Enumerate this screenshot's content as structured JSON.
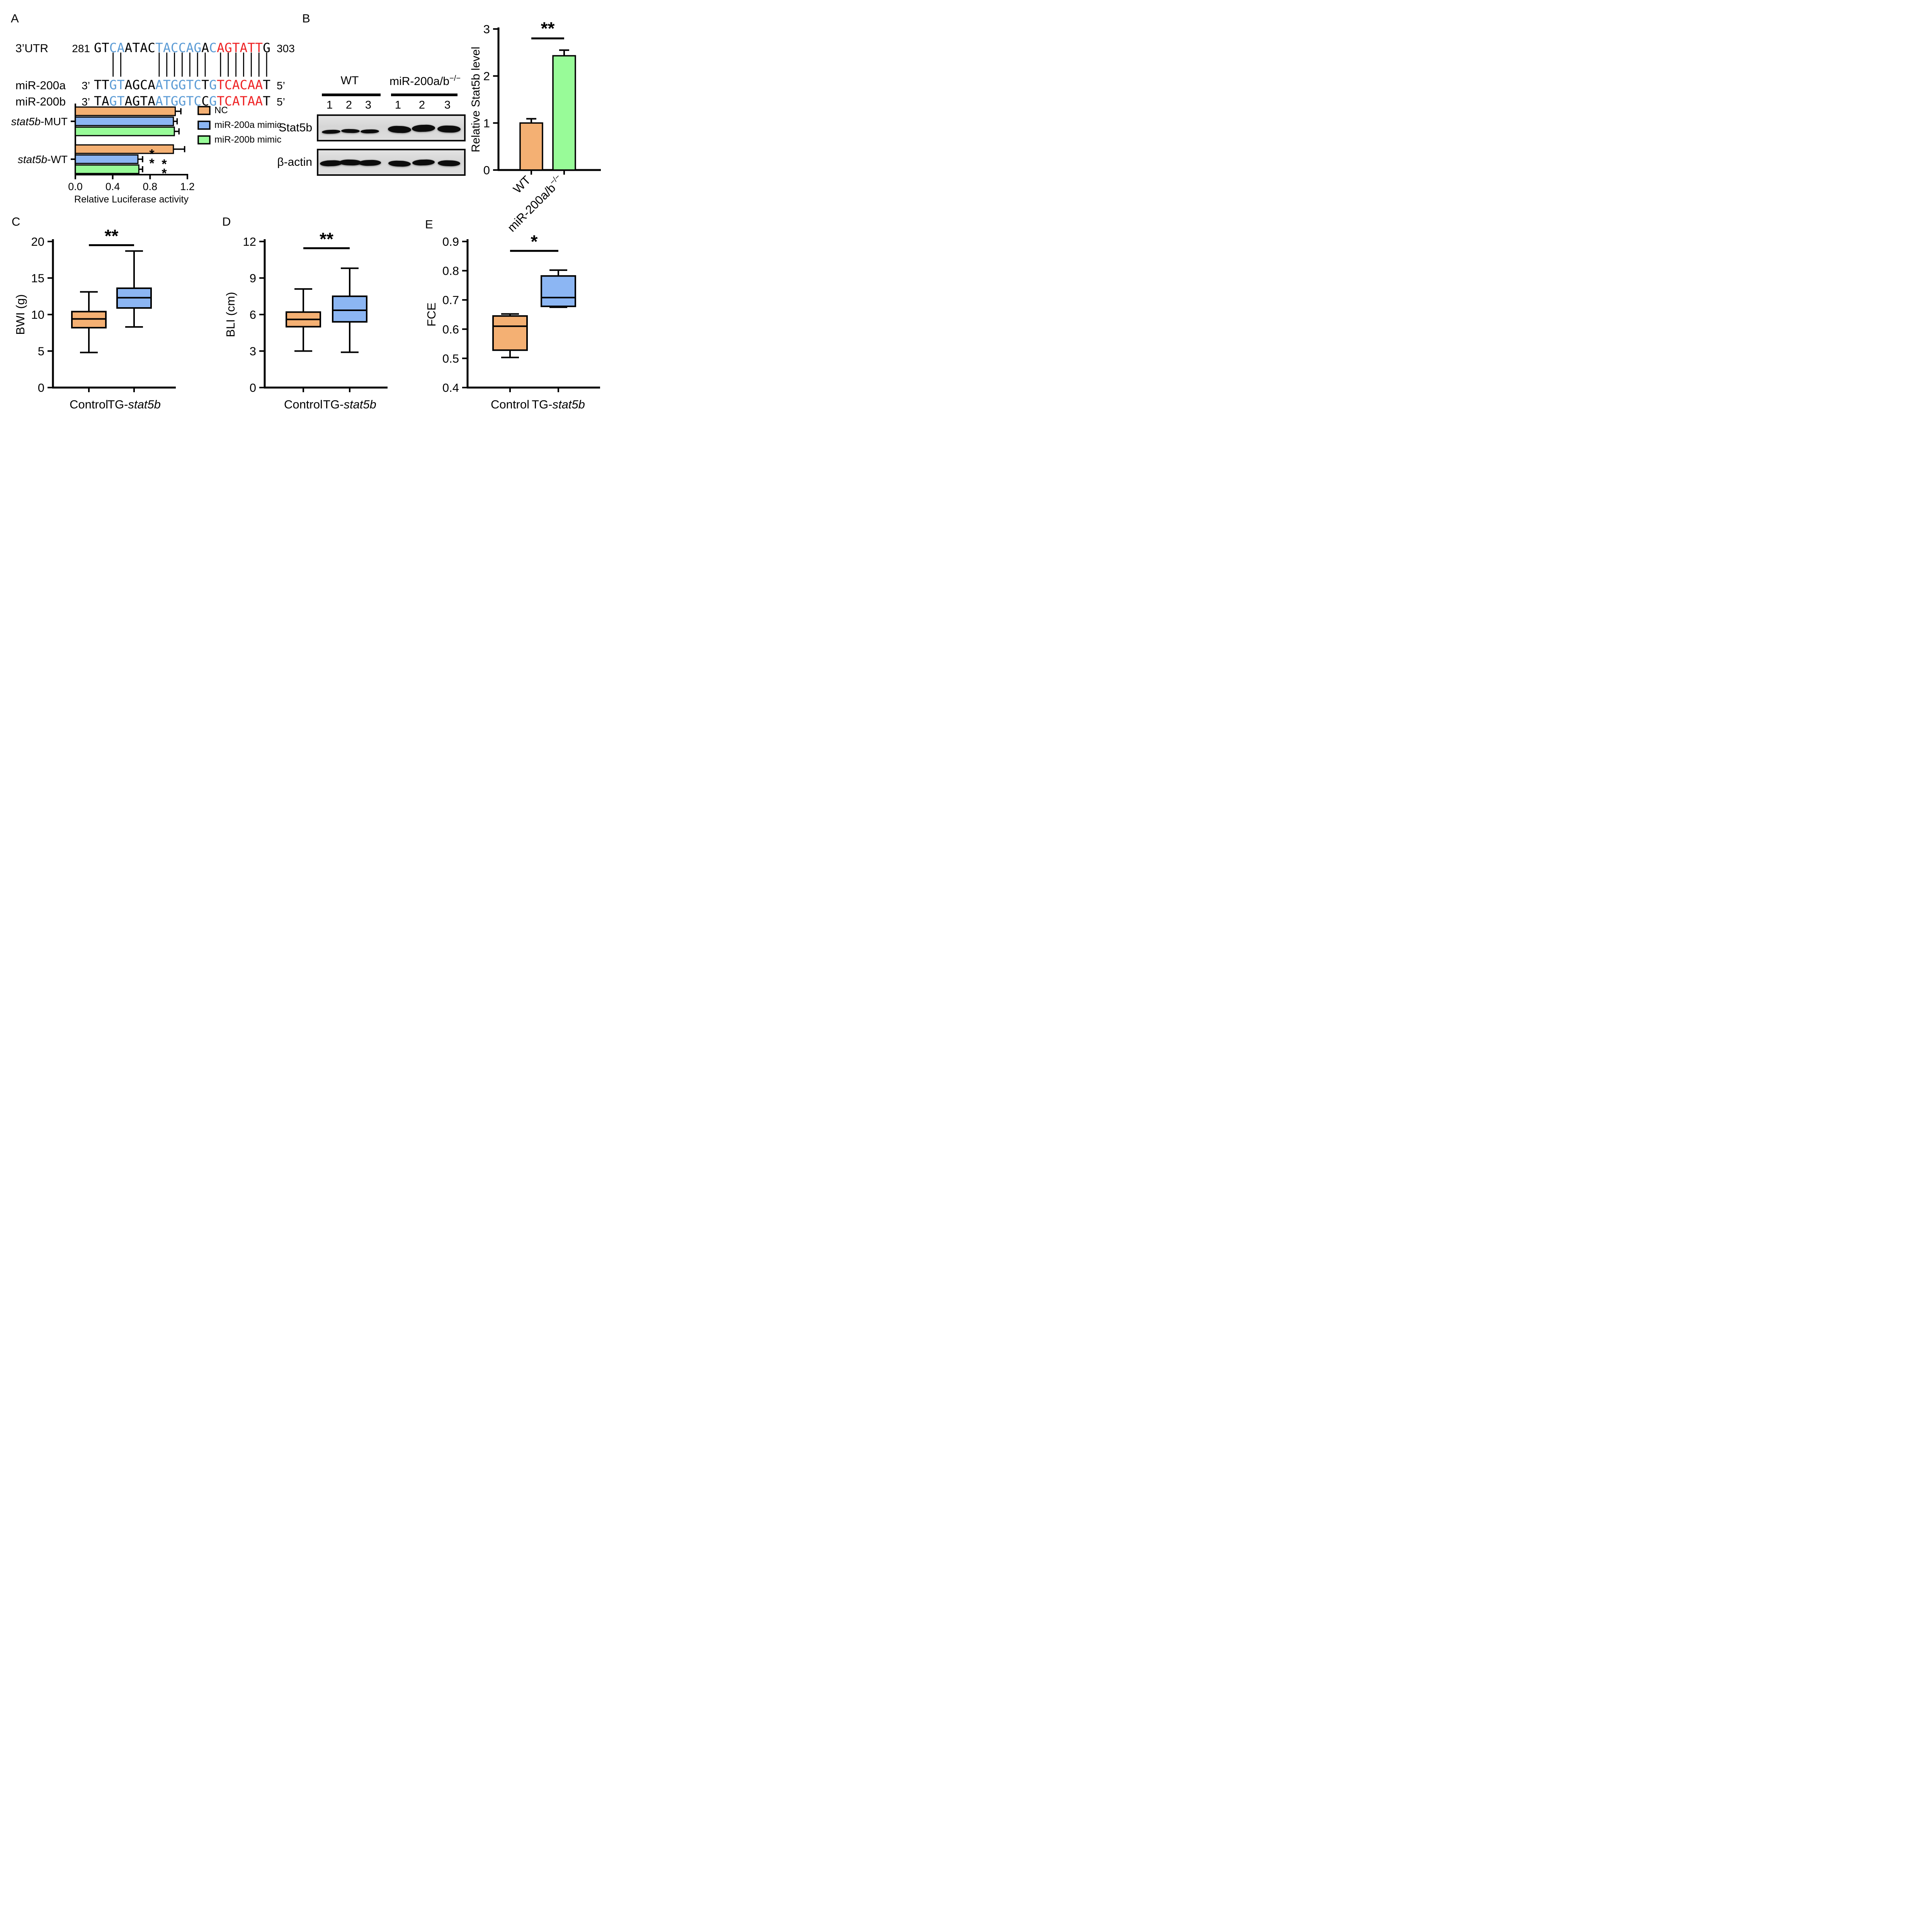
{
  "colors": {
    "orange": "#F4B073",
    "blue": "#8CB6F3",
    "green": "#98FB98",
    "seq_blue": "#5B9BD5",
    "seq_red": "#EE2224",
    "seq_black": "#000000"
  },
  "panelA": {
    "label": "A",
    "alignment": {
      "rows": [
        {
          "name": "3’UTR",
          "prefix": "281",
          "suffix": "303",
          "segments": [
            {
              "t": "GT",
              "c": "black"
            },
            {
              "t": "CA",
              "c": "blue"
            },
            {
              "t": "ATAC",
              "c": "black"
            },
            {
              "t": "TACCAG",
              "c": "blue"
            },
            {
              "t": "A",
              "c": "black"
            },
            {
              "t": "C",
              "c": "blue"
            },
            {
              "t": "AGTATT",
              "c": "red"
            },
            {
              "t": "G",
              "c": "black"
            }
          ]
        },
        {
          "name": "miR-200a",
          "prefix": "3’",
          "suffix": "5’",
          "segments": [
            {
              "t": "TT",
              "c": "black"
            },
            {
              "t": "GT",
              "c": "blue"
            },
            {
              "t": "AGCA",
              "c": "black"
            },
            {
              "t": "ATGGTC",
              "c": "blue"
            },
            {
              "t": "T",
              "c": "black"
            },
            {
              "t": "G",
              "c": "blue"
            },
            {
              "t": "TCACAA",
              "c": "red"
            },
            {
              "t": "T",
              "c": "black"
            }
          ]
        },
        {
          "name": "miR-200b",
          "prefix": "3’",
          "suffix": "5’",
          "segments": [
            {
              "t": "TA",
              "c": "black"
            },
            {
              "t": "GT",
              "c": "blue"
            },
            {
              "t": "AGTA",
              "c": "black"
            },
            {
              "t": "ATGGTC",
              "c": "blue"
            },
            {
              "t": "C",
              "c": "black"
            },
            {
              "t": "G",
              "c": "blue"
            },
            {
              "t": "TCATAA",
              "c": "red"
            },
            {
              "t": "T",
              "c": "black"
            }
          ]
        }
      ],
      "pairing": "  ||    ||||||| |||||||"
    }
  },
  "panelB": {
    "label": "B",
    "blot": {
      "group_labels": [
        {
          "segments": [
            {
              "t": "WT"
            }
          ]
        },
        {
          "segments": [
            {
              "t": "miR-200a/b"
            },
            {
              "t": "−/−",
              "style": "sup"
            }
          ]
        }
      ],
      "lane_numbers": [
        "1",
        "2",
        "3",
        "1",
        "2",
        "3"
      ],
      "rows": [
        {
          "label": "Stat5b",
          "band_strengths": [
            "weak",
            "weak",
            "weak",
            "strong",
            "strong",
            "strong"
          ]
        },
        {
          "label": "β-actin",
          "band_strengths": [
            "actin",
            "actin",
            "actin",
            "actin",
            "actin",
            "actin"
          ]
        }
      ]
    }
  },
  "panelC": {
    "label": "C"
  },
  "panelD": {
    "label": "D"
  },
  "panelE": {
    "label": "E"
  },
  "chart_data": [
    {
      "id": "luciferase",
      "panel": "A",
      "type": "bar",
      "orientation": "horizontal",
      "xlabel": "Relative Luciferase activity",
      "xlim": [
        0,
        1.2
      ],
      "xticks": [
        "0.0",
        "0.4",
        "0.8",
        "1.2"
      ],
      "groups": [
        {
          "label": {
            "segments": [
              {
                "t": "stat5b",
                "style": "italic"
              },
              {
                "t": "-MUT"
              }
            ]
          }
        },
        {
          "label": {
            "segments": [
              {
                "t": "stat5b",
                "style": "italic"
              },
              {
                "t": "-WT"
              }
            ]
          }
        }
      ],
      "series": [
        {
          "name": "NC",
          "color": "#F4B073",
          "values": [
            1.07,
            1.05
          ],
          "errors": [
            0.06,
            0.12
          ],
          "sig": [
            "",
            ""
          ]
        },
        {
          "name": "miR-200a mimic",
          "color": "#8CB6F3",
          "values": [
            1.05,
            0.67
          ],
          "errors": [
            0.04,
            0.05
          ],
          "sig": [
            "",
            "**"
          ]
        },
        {
          "name": "miR-200b mimic",
          "color": "#98FB98",
          "values": [
            1.06,
            0.68
          ],
          "errors": [
            0.05,
            0.04
          ],
          "sig": [
            "",
            "**"
          ]
        }
      ],
      "legend_position": "right",
      "grid": false
    },
    {
      "id": "stat5b_level",
      "panel": "B",
      "type": "bar",
      "orientation": "vertical",
      "ylabel": "Relative Stat5b level",
      "ylim": [
        0,
        3
      ],
      "yticks": [
        "0",
        "1",
        "2",
        "3"
      ],
      "categories": [
        {
          "segments": [
            {
              "t": "WT"
            }
          ]
        },
        {
          "segments": [
            {
              "t": "miR-200a/b"
            },
            {
              "t": "−/−",
              "style": "sup"
            }
          ]
        }
      ],
      "values": [
        1.0,
        2.43
      ],
      "errors": [
        0.09,
        0.12
      ],
      "colors": [
        "#F4B073",
        "#98FB98"
      ],
      "significance": {
        "label": "**",
        "between": [
          0,
          1
        ],
        "line_value": 2.8
      },
      "grid": false
    },
    {
      "id": "bwi",
      "panel": "C",
      "type": "box",
      "ylabel": "BWI (g)",
      "ylim": [
        0,
        20
      ],
      "yticks": [
        "0",
        "5",
        "10",
        "15",
        "20"
      ],
      "categories": [
        {
          "segments": [
            {
              "t": "Control"
            }
          ]
        },
        {
          "segments": [
            {
              "t": "TG-"
            },
            {
              "t": "stat5b",
              "style": "italic"
            }
          ]
        }
      ],
      "boxes": [
        {
          "whisker_low": 4.8,
          "q1": 8.2,
          "median": 9.4,
          "q3": 10.4,
          "whisker_high": 13.1,
          "color": "#F4B073"
        },
        {
          "whisker_low": 8.3,
          "q1": 10.9,
          "median": 12.3,
          "q3": 13.6,
          "whisker_high": 18.7,
          "color": "#8CB6F3"
        }
      ],
      "significance": {
        "label": "**",
        "between": [
          0,
          1
        ],
        "line_value": 19.5
      },
      "grid": false
    },
    {
      "id": "bli",
      "panel": "D",
      "type": "box",
      "ylabel": "BLI (cm)",
      "ylim": [
        0,
        12
      ],
      "yticks": [
        "0",
        "3",
        "6",
        "9",
        "12"
      ],
      "categories": [
        {
          "segments": [
            {
              "t": "Control"
            }
          ]
        },
        {
          "segments": [
            {
              "t": "TG-"
            },
            {
              "t": "stat5b",
              "style": "italic"
            }
          ]
        }
      ],
      "boxes": [
        {
          "whisker_low": 3.0,
          "q1": 5.0,
          "median": 5.6,
          "q3": 6.2,
          "whisker_high": 8.1,
          "color": "#F4B073"
        },
        {
          "whisker_low": 2.9,
          "q1": 5.4,
          "median": 6.35,
          "q3": 7.5,
          "whisker_high": 9.8,
          "color": "#8CB6F3"
        }
      ],
      "significance": {
        "label": "**",
        "between": [
          0,
          1
        ],
        "line_value": 11.45
      },
      "grid": false
    },
    {
      "id": "fce",
      "panel": "E",
      "type": "box",
      "ylabel": "FCE",
      "ylim": [
        0.4,
        0.9
      ],
      "yticks": [
        "0.4",
        "0.5",
        "0.6",
        "0.7",
        "0.8",
        "0.9"
      ],
      "categories": [
        {
          "segments": [
            {
              "t": "Control"
            }
          ]
        },
        {
          "segments": [
            {
              "t": "TG-"
            },
            {
              "t": "stat5b",
              "style": "italic"
            }
          ]
        }
      ],
      "boxes": [
        {
          "whisker_low": 0.503,
          "q1": 0.528,
          "median": 0.61,
          "q3": 0.645,
          "whisker_high": 0.652,
          "color": "#F4B073"
        },
        {
          "whisker_low": 0.675,
          "q1": 0.678,
          "median": 0.708,
          "q3": 0.782,
          "whisker_high": 0.802,
          "color": "#8CB6F3"
        }
      ],
      "significance": {
        "label": "*",
        "between": [
          0,
          1
        ],
        "line_value": 0.868
      },
      "grid": false
    }
  ]
}
